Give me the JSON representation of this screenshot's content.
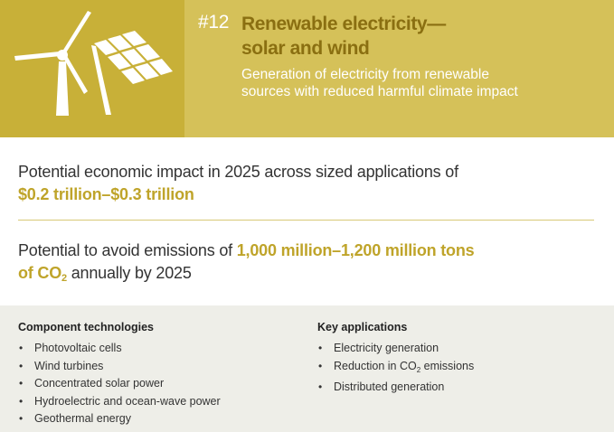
{
  "header": {
    "number": "#12",
    "title_line1": "Renewable electricity—",
    "title_line2": "solar and wind",
    "subtitle_line1": "Generation of electricity from renewable",
    "subtitle_line2": "sources with reduced harmful climate impact",
    "icons": [
      "wind-turbine-icon",
      "solar-panel-icon"
    ]
  },
  "impact": {
    "text": "Potential economic impact in 2025 across sized applications of",
    "value": "$0.2 trillion–$0.3 trillion"
  },
  "emissions": {
    "prefix": "Potential to avoid emissions of ",
    "value": "1,000 million–1,200 million tons",
    "of": "of CO",
    "sub": "2",
    "suffix": " annually by 2025"
  },
  "component_technologies": {
    "title": "Component technologies",
    "items": [
      "Photovoltaic cells",
      "Wind turbines",
      "Concentrated solar power",
      "Hydroelectric and ocean-wave power",
      "Geothermal energy"
    ]
  },
  "key_applications": {
    "title": "Key applications",
    "items": [
      "Electricity generation",
      "Distributed generation"
    ],
    "co2_item": {
      "prefix": "Reduction in CO",
      "sub": "2",
      "suffix": " emissions"
    }
  },
  "bullet": "•",
  "colors": {
    "header_bg": "#d5c159",
    "icon_panel_bg": "#c8b038",
    "title": "#8a6f11",
    "highlight": "#bfa42a",
    "bottom_bg": "#eeeee8"
  }
}
